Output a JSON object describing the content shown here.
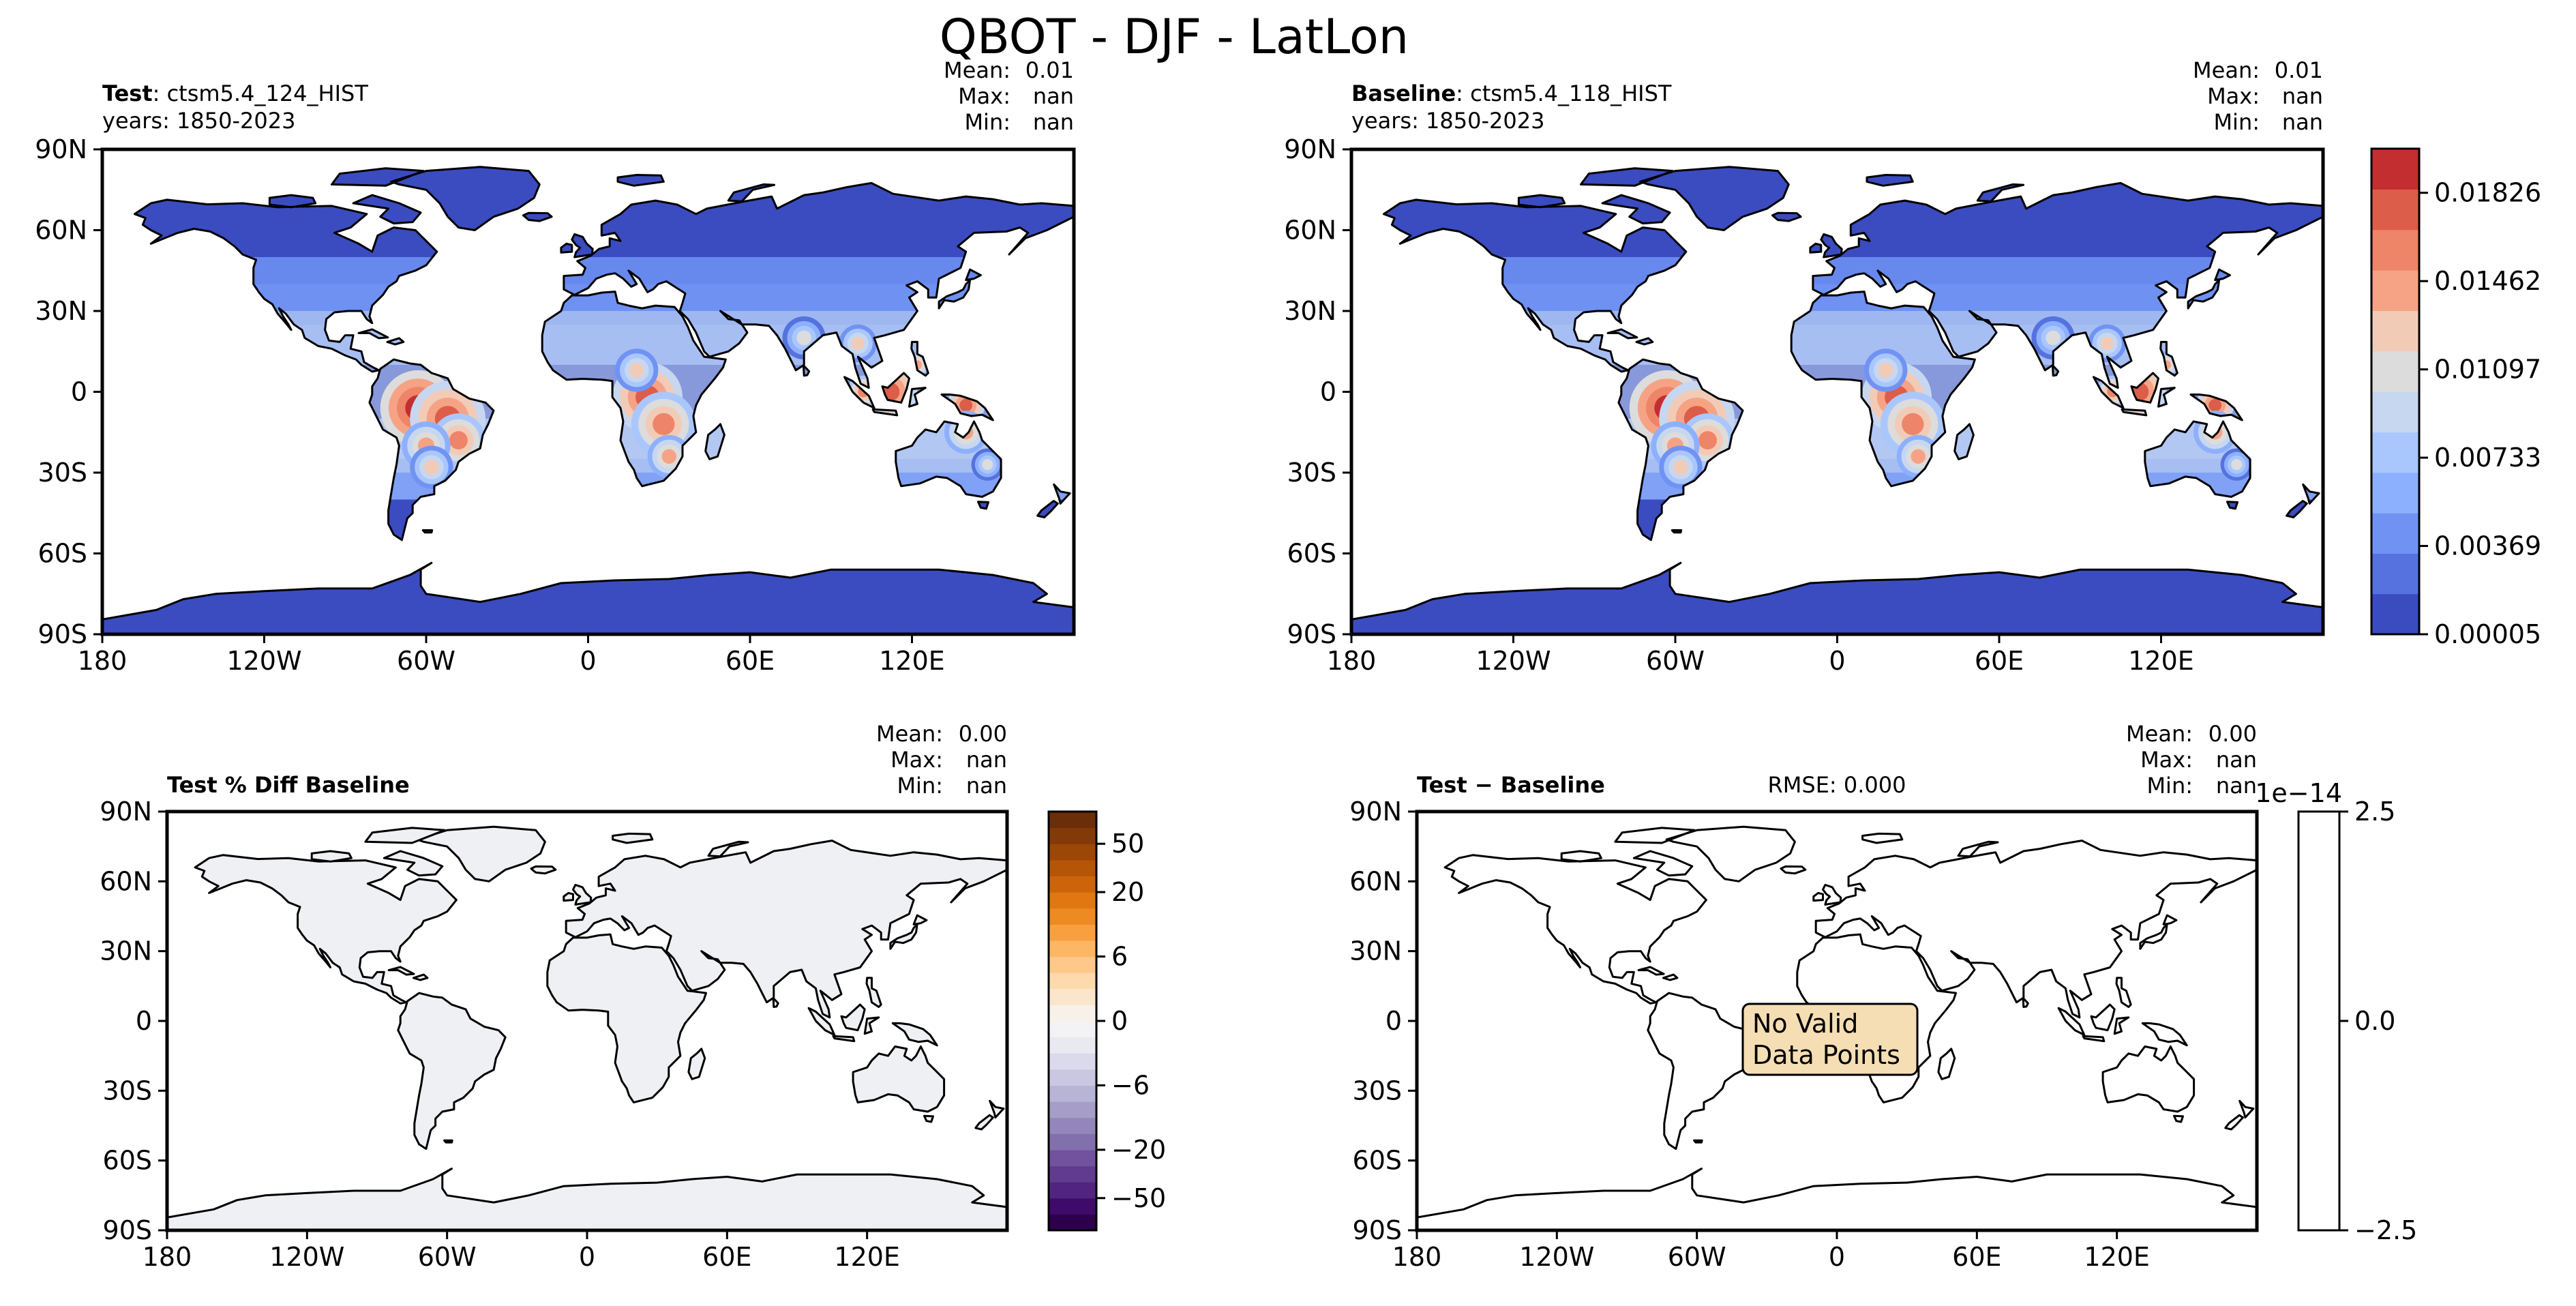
{
  "title": "QBOT - DJF - LatLon",
  "panels": [
    {
      "heading_bold": "Test",
      "heading_rest": ": ctsm5.4_124_HIST",
      "years": "years: 1850-2023",
      "stats": {
        "mean_label": "Mean:",
        "mean": "0.01",
        "max_label": "Max:",
        "max": "nan",
        "min_label": "Min:",
        "min": "nan"
      },
      "rmse": ""
    },
    {
      "heading_bold": "Baseline",
      "heading_rest": ": ctsm5.4_118_HIST",
      "years": "years: 1850-2023",
      "stats": {
        "mean_label": "Mean:",
        "mean": "0.01",
        "max_label": "Max:",
        "max": "nan",
        "min_label": "Min:",
        "min": "nan"
      },
      "rmse": ""
    },
    {
      "heading_bold": "Test % Diff Baseline",
      "heading_rest": "",
      "years": "",
      "stats": {
        "mean_label": "Mean:",
        "mean": "0.00",
        "max_label": "Max:",
        "max": "nan",
        "min_label": "Min:",
        "min": "nan"
      },
      "rmse": ""
    },
    {
      "heading_bold": "Test − Baseline",
      "heading_rest": "",
      "years": "",
      "stats": {
        "mean_label": "Mean:",
        "mean": "0.00",
        "max_label": "Max:",
        "max": "nan",
        "min_label": "Min:",
        "min": "nan"
      },
      "rmse": "RMSE: 0.000"
    }
  ],
  "no_data_message": [
    "No Valid",
    "Data Points"
  ],
  "chart_data": [
    {
      "type": "heatmap",
      "panel": "test",
      "title": "Test: ctsm5.4_124_HIST",
      "projection": "PlateCarree",
      "lon_ticks": [
        "180",
        "120W",
        "60W",
        "0",
        "60E",
        "120E"
      ],
      "lat_ticks": [
        "90N",
        "60N",
        "30N",
        "0",
        "30S",
        "60S",
        "90S"
      ],
      "lon_range": [
        -180,
        180
      ],
      "lat_range": [
        -90,
        90
      ],
      "mean": 0.01,
      "max": "nan",
      "min": "nan"
    },
    {
      "type": "heatmap",
      "panel": "baseline",
      "title": "Baseline: ctsm5.4_118_HIST",
      "projection": "PlateCarree",
      "lon_ticks": [
        "180",
        "120W",
        "60W",
        "0",
        "60E",
        "120E"
      ],
      "lat_ticks": [
        "90N",
        "60N",
        "30N",
        "0",
        "30S",
        "60S",
        "90S"
      ],
      "lon_range": [
        -180,
        180
      ],
      "lat_range": [
        -90,
        90
      ],
      "mean": 0.01,
      "max": "nan",
      "min": "nan",
      "colorbar": {
        "levels": [
          5e-05,
          0.00192,
          0.00369,
          0.00551,
          0.00733,
          0.00915,
          0.01097,
          0.0128,
          0.01462,
          0.01644,
          0.01826,
          0.02008
        ],
        "tick_labels": [
          "0.00005",
          "0.00369",
          "0.00733",
          "0.01097",
          "0.01462",
          "0.01826"
        ],
        "tick_values": [
          5e-05,
          0.00369,
          0.00733,
          0.01097,
          0.01462,
          0.01826
        ],
        "colors": [
          "#3b4cc0",
          "#5572df",
          "#7093f3",
          "#8db0fe",
          "#aac7fd",
          "#c7d7f0",
          "#dddcdc",
          "#f2cbb7",
          "#f6a385",
          "#ee8468",
          "#dc5d4a",
          "#c32e31"
        ]
      }
    },
    {
      "type": "heatmap",
      "panel": "pct_diff",
      "title": "Test % Diff Baseline",
      "projection": "PlateCarree",
      "lon_ticks": [
        "180",
        "120W",
        "60W",
        "0",
        "60E",
        "120E"
      ],
      "lat_ticks": [
        "90N",
        "60N",
        "30N",
        "0",
        "30S",
        "60S",
        "90S"
      ],
      "lon_range": [
        -180,
        180
      ],
      "lat_range": [
        -90,
        90
      ],
      "mean": 0.0,
      "max": "nan",
      "min": "nan",
      "colorbar": {
        "levels": [
          -100,
          -70,
          -50,
          -40,
          -30,
          -20,
          -15,
          -10,
          -8,
          -6,
          -4,
          -2,
          -1,
          0,
          1,
          2,
          4,
          6,
          8,
          10,
          15,
          20,
          30,
          40,
          50,
          70,
          100
        ],
        "tick_labels": [
          "−50",
          "−20",
          "−6",
          "0",
          "6",
          "20",
          "50"
        ],
        "tick_values": [
          -50,
          -20,
          -6,
          0,
          6,
          20,
          50
        ],
        "colors": [
          "#2d004b",
          "#3f0a6a",
          "#51257f",
          "#613b8f",
          "#71529f",
          "#8270ad",
          "#9386bb",
          "#a69ec9",
          "#b8b4d6",
          "#cac7e3",
          "#dbdaec",
          "#e9e9f1",
          "#f3f2f4",
          "#f8f1e9",
          "#fbe6cd",
          "#fdd9ab",
          "#fdc889",
          "#fdb663",
          "#f8a03f",
          "#ee8a22",
          "#e0770f",
          "#cc650a",
          "#b55506",
          "#9c4706",
          "#843a07",
          "#6b2e08"
        ]
      }
    },
    {
      "type": "heatmap",
      "panel": "difference",
      "title": "Test − Baseline",
      "projection": "PlateCarree",
      "lon_ticks": [
        "180",
        "120W",
        "60W",
        "0",
        "60E",
        "120E"
      ],
      "lat_ticks": [
        "90N",
        "60N",
        "30N",
        "0",
        "30S",
        "60S",
        "90S"
      ],
      "lon_range": [
        -180,
        180
      ],
      "lat_range": [
        -90,
        90
      ],
      "mean": 0.0,
      "max": "nan",
      "min": "nan",
      "rmse": 0.0,
      "colorbar": {
        "range": [
          -2.5e-14,
          2.5e-14
        ],
        "tick_labels": [
          "2.5",
          "0.0",
          "−2.5"
        ],
        "tick_values": [
          2.5,
          0.0,
          -2.5
        ],
        "offset_label": "1e−14",
        "colors": [
          "#ffffff"
        ]
      }
    }
  ]
}
